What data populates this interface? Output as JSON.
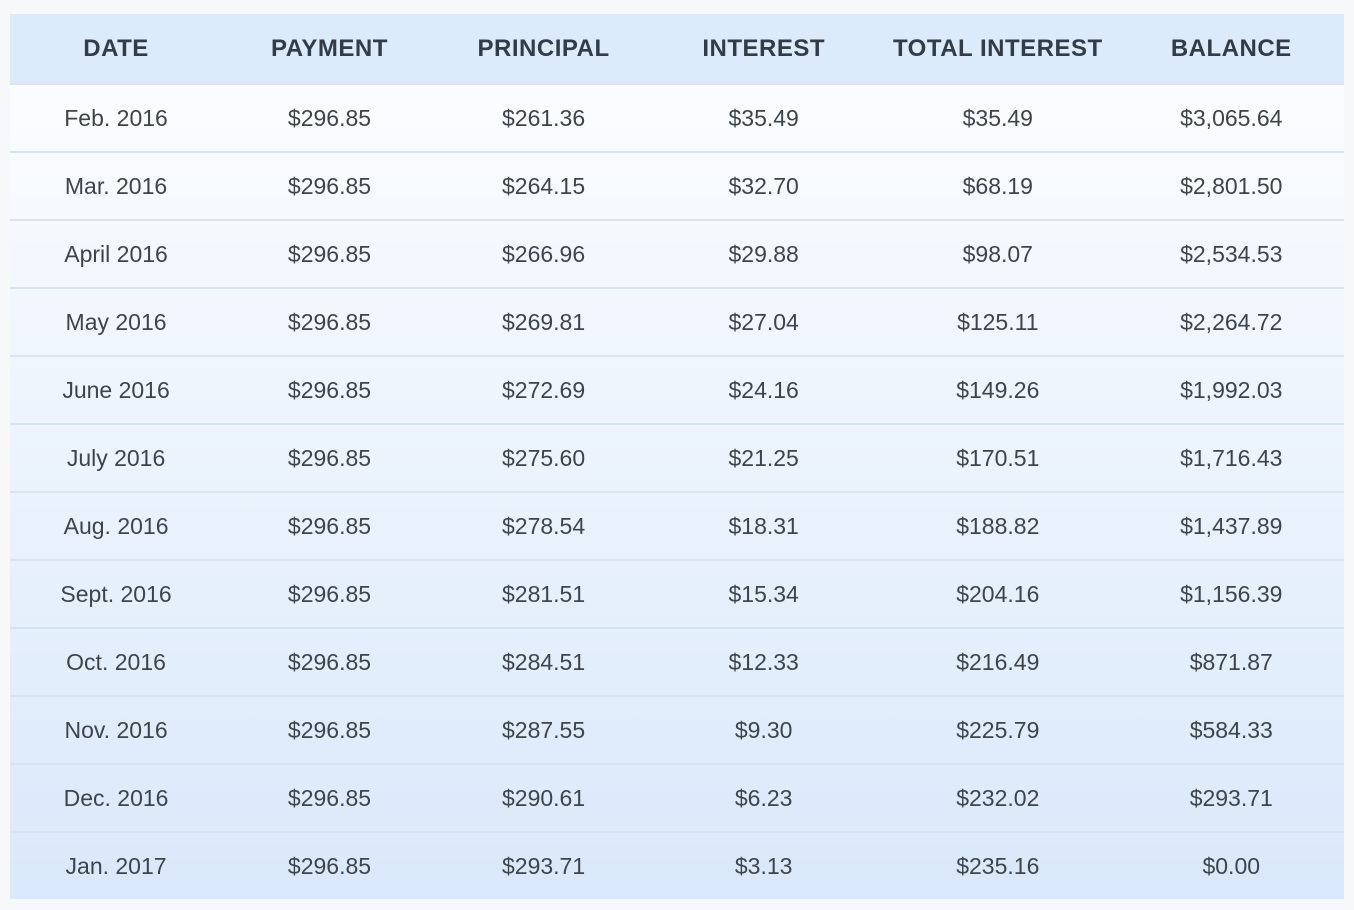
{
  "colors": {
    "page_bg": "#f7f8f9",
    "header_bg": "#dcebfb",
    "header_text": "#323b46",
    "cell_text": "#3e444b",
    "row_gradient_top": "#fcfdff",
    "row_gradient_bottom": "#d9e8fa",
    "separator": "#d9e4f1"
  },
  "chart_data": {
    "type": "table",
    "columns": [
      "DATE",
      "PAYMENT",
      "PRINCIPAL",
      "INTEREST",
      "TOTAL INTEREST",
      "BALANCE"
    ],
    "rows": [
      [
        "Feb. 2016",
        "$296.85",
        "$261.36",
        "$35.49",
        "$35.49",
        "$3,065.64"
      ],
      [
        "Mar. 2016",
        "$296.85",
        "$264.15",
        "$32.70",
        "$68.19",
        "$2,801.50"
      ],
      [
        "April 2016",
        "$296.85",
        "$266.96",
        "$29.88",
        "$98.07",
        "$2,534.53"
      ],
      [
        "May 2016",
        "$296.85",
        "$269.81",
        "$27.04",
        "$125.11",
        "$2,264.72"
      ],
      [
        "June 2016",
        "$296.85",
        "$272.69",
        "$24.16",
        "$149.26",
        "$1,992.03"
      ],
      [
        "July 2016",
        "$296.85",
        "$275.60",
        "$21.25",
        "$170.51",
        "$1,716.43"
      ],
      [
        "Aug. 2016",
        "$296.85",
        "$278.54",
        "$18.31",
        "$188.82",
        "$1,437.89"
      ],
      [
        "Sept. 2016",
        "$296.85",
        "$281.51",
        "$15.34",
        "$204.16",
        "$1,156.39"
      ],
      [
        "Oct. 2016",
        "$296.85",
        "$284.51",
        "$12.33",
        "$216.49",
        "$871.87"
      ],
      [
        "Nov. 2016",
        "$296.85",
        "$287.55",
        "$9.30",
        "$225.79",
        "$584.33"
      ],
      [
        "Dec. 2016",
        "$296.85",
        "$290.61",
        "$6.23",
        "$232.02",
        "$293.71"
      ],
      [
        "Jan. 2017",
        "$296.85",
        "$293.71",
        "$3.13",
        "$235.16",
        "$0.00"
      ]
    ]
  }
}
